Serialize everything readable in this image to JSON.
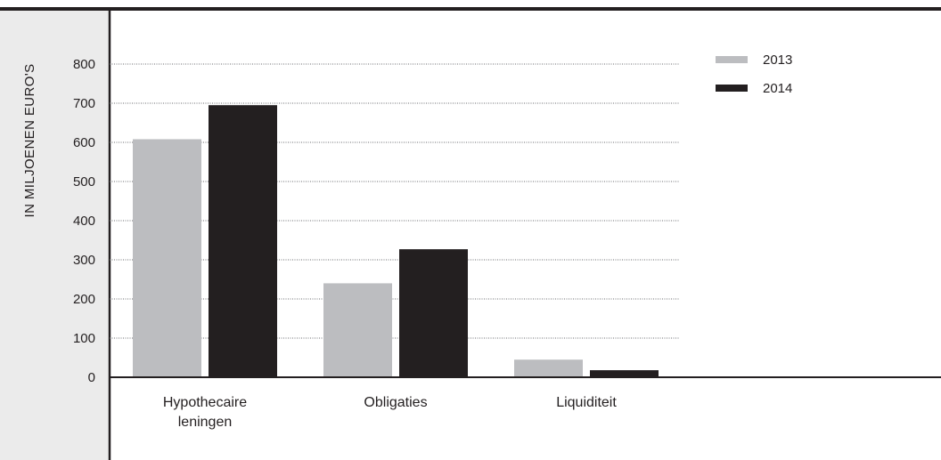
{
  "chart_data": {
    "type": "bar",
    "title": "",
    "xlabel": "",
    "ylabel": "IN MILJOENEN EURO'S",
    "categories": [
      "Hypothecaire leningen",
      "Obligaties",
      "Liquiditeit"
    ],
    "category_lines": [
      [
        "Hypothecaire",
        "leningen"
      ],
      [
        "Obligaties"
      ],
      [
        "Liquiditeit"
      ]
    ],
    "series": [
      {
        "name": "2013",
        "values": [
          608,
          240,
          45
        ]
      },
      {
        "name": "2014",
        "values": [
          695,
          327,
          18
        ]
      }
    ],
    "ylim": [
      0,
      800
    ],
    "yticks": [
      0,
      100,
      200,
      300,
      400,
      500,
      600,
      700,
      800
    ],
    "grid": true,
    "grid_style": "dotted",
    "legend_position": "top-right"
  },
  "colors": {
    "series_2013": "#bcbdc0",
    "series_2014": "#231f20",
    "ylabel_panel": "#ebebeb",
    "axis": "#231f20",
    "text": "#231f20",
    "grid": "#6d6e71"
  }
}
